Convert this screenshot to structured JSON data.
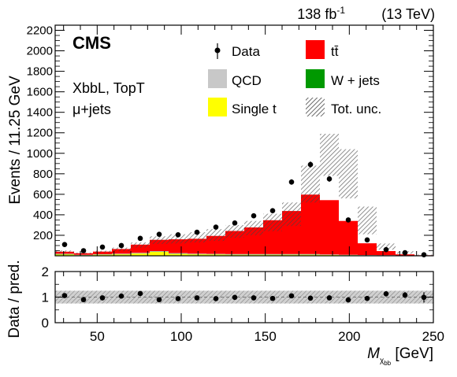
{
  "header": {
    "lumi": "138 fb",
    "lumi_exp": "-1",
    "energy": "(13 TeV)",
    "experiment": "CMS",
    "category": "XbbL, TopT",
    "channel": "μ+jets"
  },
  "colors": {
    "ttbar": "#ff0000",
    "qcd": "#c8c8c8",
    "wjets": "#009900",
    "single_t": "#ffff00",
    "data": "#000000"
  },
  "legend": [
    {
      "label": "Data",
      "kind": "data"
    },
    {
      "label": "tt̄",
      "kind": "fill",
      "color_key": "ttbar"
    },
    {
      "label": "QCD",
      "kind": "fill",
      "color_key": "qcd"
    },
    {
      "label": "W + jets",
      "kind": "fill",
      "color_key": "wjets"
    },
    {
      "label": "Single t",
      "kind": "fill",
      "color_key": "single_t"
    },
    {
      "label": "Tot. unc.",
      "kind": "hatch"
    }
  ],
  "chart_data": [
    {
      "type": "bar",
      "stacked": true,
      "ylabel": "Events / 11.25 GeV",
      "xlim": [
        25,
        250
      ],
      "ylim": [
        0,
        2250
      ],
      "yticks": [
        200,
        400,
        600,
        800,
        1000,
        1200,
        1400,
        1600,
        1800,
        2000,
        2200
      ],
      "bin_edges": [
        25,
        36.25,
        47.5,
        58.75,
        70,
        81.25,
        92.5,
        103.75,
        115,
        126.25,
        137.5,
        148.75,
        160,
        171.25,
        182.5,
        193.75,
        205,
        216.25,
        227.5,
        238.75,
        250
      ],
      "series": [
        {
          "name": "Single t",
          "color_key": "single_t",
          "values": [
            12,
            6,
            10,
            14,
            22,
            38,
            18,
            14,
            12,
            10,
            10,
            10,
            10,
            10,
            8,
            6,
            4,
            3,
            2,
            1
          ]
        },
        {
          "name": "W + jets",
          "color_key": "wjets",
          "values": [
            3,
            1,
            2,
            2,
            2,
            3,
            3,
            2,
            2,
            2,
            2,
            2,
            2,
            2,
            1,
            1,
            1,
            1,
            1,
            0
          ]
        },
        {
          "name": "QCD",
          "color_key": "qcd",
          "values": [
            5,
            3,
            4,
            5,
            5,
            5,
            5,
            5,
            5,
            5,
            5,
            5,
            5,
            5,
            4,
            3,
            2,
            2,
            1,
            1
          ]
        },
        {
          "name": "tt̄",
          "color_key": "ttbar",
          "values": [
            20,
            15,
            25,
            45,
            80,
            110,
            135,
            145,
            175,
            225,
            260,
            330,
            420,
            580,
            530,
            330,
            115,
            40,
            10,
            3
          ]
        }
      ],
      "unc_band": [
        [
          30,
          52
        ],
        [
          20,
          30
        ],
        [
          30,
          50
        ],
        [
          45,
          80
        ],
        [
          80,
          130
        ],
        [
          115,
          190
        ],
        [
          120,
          210
        ],
        [
          130,
          230
        ],
        [
          145,
          260
        ],
        [
          175,
          300
        ],
        [
          200,
          340
        ],
        [
          240,
          410
        ],
        [
          290,
          520
        ],
        [
          520,
          880
        ],
        [
          780,
          1190
        ],
        [
          560,
          1040
        ],
        [
          210,
          480
        ],
        [
          60,
          120
        ],
        [
          20,
          45
        ],
        [
          5,
          12
        ]
      ],
      "data": [
        110,
        50,
        85,
        100,
        170,
        210,
        205,
        230,
        280,
        320,
        390,
        440,
        720,
        890,
        750,
        350,
        155,
        60,
        30,
        10
      ]
    },
    {
      "type": "scatter",
      "xlabel": "M_χbb [GeV]",
      "ylabel": "Data / pred.",
      "ylim": [
        0,
        2
      ],
      "yticks": [
        0,
        1,
        2
      ],
      "xticks": [
        50,
        100,
        150,
        200,
        250
      ],
      "band": [
        0.75,
        1.25
      ],
      "values": [
        1.06,
        0.9,
        0.97,
        1.04,
        1.14,
        0.9,
        0.94,
        0.97,
        0.94,
        0.99,
        0.97,
        0.95,
        1.05,
        0.96,
        0.97,
        0.89,
        0.95,
        1.13,
        1.08,
        0.99
      ],
      "errors": [
        0.08,
        0.1,
        0.08,
        0.06,
        0.06,
        0.05,
        0.05,
        0.05,
        0.05,
        0.05,
        0.04,
        0.04,
        0.04,
        0.03,
        0.04,
        0.05,
        0.06,
        0.1,
        0.12,
        0.2
      ]
    }
  ]
}
